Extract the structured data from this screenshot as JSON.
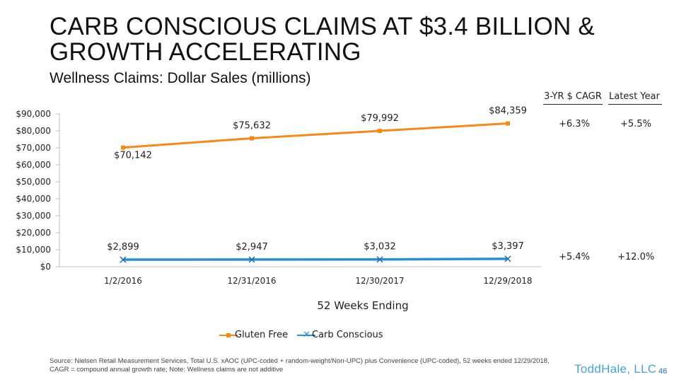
{
  "title": "CARB CONSCIOUS CLAIMS AT $3.4 BILLION & GROWTH ACCELERATING",
  "subtitle": "Wellness Claims: Dollar Sales (millions)",
  "table_headers": {
    "cagr": "3-YR $ CAGR",
    "latest": "Latest Year"
  },
  "stats": {
    "gluten_free": {
      "cagr": "+6.3%",
      "latest": "+5.5%"
    },
    "carb_conscious": {
      "cagr": "+5.4%",
      "latest": "+12.0%"
    }
  },
  "source_note": "Source: Nielsen Retail Measurement Services, Total U.S. xAOC (UPC-coded + random-weight/Non-UPC) plus Convenience (UPC-coded), 52 weeks ended 12/29/2018, CAGR = compound annual growth rate; Note: Wellness claims are not additive",
  "logo_text": "ToddHale, LLC",
  "page_number": "46",
  "chart_data": {
    "type": "line",
    "title": "Wellness Claims: Dollar Sales (millions)",
    "xlabel": "52 Weeks Ending",
    "ylabel": "",
    "categories": [
      "1/2/2016",
      "12/31/2016",
      "12/30/2017",
      "12/29/2018"
    ],
    "ylim": [
      0,
      90000
    ],
    "yticks": [
      0,
      10000,
      20000,
      30000,
      40000,
      50000,
      60000,
      70000,
      80000,
      90000
    ],
    "ytick_labels": [
      "$0",
      "$10,000",
      "$20,000",
      "$30,000",
      "$40,000",
      "$50,000",
      "$60,000",
      "$70,000",
      "$80,000",
      "$90,000"
    ],
    "grid": false,
    "legend_position": "bottom",
    "series": [
      {
        "name": "Gluten Free",
        "values": [
          70142,
          75632,
          79992,
          84359
        ],
        "labels": [
          "$70,142",
          "$75,632",
          "$79,992",
          "$84,359"
        ],
        "color": "#f28a1e",
        "marker": "square"
      },
      {
        "name": "Carb Conscious",
        "values": [
          2899,
          2947,
          3032,
          3397
        ],
        "labels": [
          "$2,899",
          "$2,947",
          "$3,032",
          "$3,397"
        ],
        "color": "#2a8fd0",
        "marker": "x"
      }
    ]
  }
}
